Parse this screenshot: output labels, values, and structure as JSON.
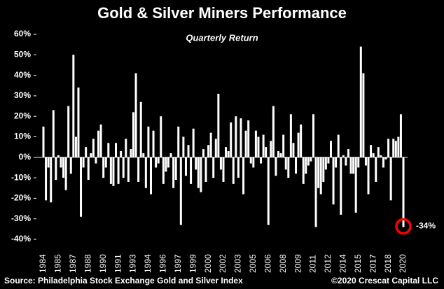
{
  "chart_data": {
    "type": "bar",
    "title": "Gold & Silver Miners Performance",
    "subtitle": "Quarterly Return",
    "source": "Source: Philadelphia Stock Exchange Gold and Silver Index",
    "credit": "©2020 Crescat Capital LLC",
    "annotation": "-34%",
    "categories": [
      "1984",
      null,
      null,
      null,
      null,
      null,
      "1985",
      null,
      null,
      null,
      null,
      null,
      "1987",
      null,
      null,
      null,
      null,
      null,
      "1988",
      null,
      null,
      null,
      null,
      null,
      "1990",
      null,
      null,
      null,
      null,
      null,
      "1991",
      null,
      null,
      null,
      null,
      null,
      "1993",
      null,
      null,
      null,
      null,
      null,
      "1994",
      null,
      null,
      null,
      null,
      null,
      "1996",
      null,
      null,
      null,
      null,
      null,
      "1997",
      null,
      null,
      null,
      null,
      null,
      "1999",
      null,
      null,
      null,
      null,
      null,
      "2000",
      null,
      null,
      null,
      null,
      null,
      "2002",
      null,
      null,
      null,
      null,
      null,
      "2003",
      null,
      null,
      null,
      null,
      null,
      "2005",
      null,
      null,
      null,
      null,
      null,
      "2006",
      null,
      null,
      null,
      null,
      null,
      "2008",
      null,
      null,
      null,
      null,
      null,
      "2009",
      null,
      null,
      null,
      null,
      null,
      "2011",
      null,
      null,
      null,
      null,
      null,
      "2012",
      null,
      null,
      null,
      null,
      null,
      "2014",
      null,
      null,
      null,
      null,
      null,
      "2015",
      null,
      null,
      null,
      null,
      null,
      "2017",
      null,
      null,
      null,
      null,
      null,
      "2018",
      null,
      null,
      null,
      null,
      null,
      "2020"
    ],
    "values": [
      15,
      -21,
      -5,
      -22,
      23,
      -11,
      1,
      -5,
      -10,
      -16,
      25,
      -8,
      50,
      10,
      34,
      -29,
      -5,
      5,
      -11,
      2,
      9,
      -3,
      13,
      16,
      -10,
      -5,
      7,
      -13,
      -14,
      7,
      -13,
      3,
      -10,
      9,
      -12,
      4,
      22,
      41,
      -12,
      27,
      2,
      -15,
      15,
      -18,
      13,
      -5,
      -3,
      20,
      -13,
      -7,
      -5,
      2,
      -15,
      -11,
      15,
      -33,
      10,
      -9,
      6,
      -13,
      14,
      -6,
      -15,
      -17,
      4,
      -12,
      6,
      12,
      -10,
      9,
      31,
      -6,
      -12,
      5,
      3,
      17,
      -13,
      20,
      -10,
      19,
      -18,
      13,
      18,
      -3,
      -5,
      13,
      10,
      -3,
      11,
      5,
      -33,
      8,
      25,
      -9,
      3,
      2,
      11,
      -6,
      -10,
      21,
      7,
      -8,
      12,
      16,
      -13,
      -8,
      -4,
      -2,
      21,
      -34,
      -15,
      -18,
      -12,
      -6,
      -3,
      8,
      -23,
      -5,
      11,
      -28,
      1,
      -4,
      4,
      -8,
      -8,
      -27,
      -5,
      54,
      41,
      -4,
      -18,
      6,
      2,
      -12,
      5,
      1,
      -5,
      -1,
      9,
      -21,
      9,
      8,
      10,
      21,
      -34
    ],
    "color": "#ffffff",
    "annotation_color": "#ff0000",
    "ylim": [
      -40,
      60
    ],
    "yticks": [
      {
        "value": -40,
        "label": "-40%"
      },
      {
        "value": -30,
        "label": "-30%"
      },
      {
        "value": -20,
        "label": "-20%"
      },
      {
        "value": -10,
        "label": "-10%"
      },
      {
        "value": 0,
        "label": "0%"
      },
      {
        "value": 10,
        "label": "10%"
      },
      {
        "value": 20,
        "label": "20%"
      },
      {
        "value": 30,
        "label": "30%"
      },
      {
        "value": 40,
        "label": "40%"
      },
      {
        "value": 50,
        "label": "50%"
      },
      {
        "value": 60,
        "label": "60%"
      }
    ]
  }
}
